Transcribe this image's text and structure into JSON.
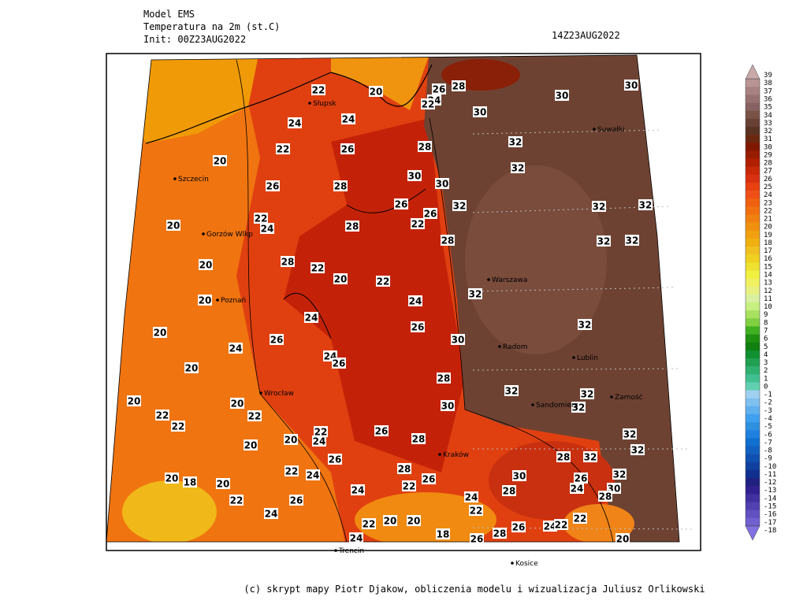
{
  "header": {
    "model": "Model EMS",
    "variable": "Temperatura na 2m (st.C)",
    "init": "Init: 00Z23AUG2022",
    "valid": "14Z23AUG2022"
  },
  "footer": "(c) skrypt mapy Piotr Djakow, obliczenia modelu i wizualizacja Juliusz Orlikowski",
  "colorbar": {
    "levels": [
      39,
      38,
      37,
      36,
      35,
      34,
      33,
      32,
      31,
      30,
      29,
      28,
      27,
      26,
      25,
      24,
      23,
      22,
      21,
      20,
      19,
      18,
      17,
      16,
      15,
      14,
      13,
      12,
      11,
      10,
      9,
      8,
      7,
      6,
      5,
      4,
      3,
      2,
      1,
      0,
      -1,
      -2,
      -3,
      -4,
      -5,
      -6,
      -7,
      -8,
      -9,
      -10,
      -11,
      -12,
      -13,
      -14,
      -15,
      -16,
      -17,
      -18
    ],
    "colors": [
      "#c8a8a8",
      "#b89494",
      "#a88282",
      "#987272",
      "#886262",
      "#785244",
      "#684034",
      "#5a3222",
      "#6a2810",
      "#801800",
      "#981c00",
      "#b02000",
      "#c82808",
      "#d83010",
      "#e84010",
      "#f05018",
      "#f06010",
      "#f07010",
      "#f08010",
      "#f09010",
      "#f0a010",
      "#f0b010",
      "#f0c020",
      "#f0d020",
      "#f0e030",
      "#f0f040",
      "#f0f060",
      "#e8f080",
      "#d8f0a0",
      "#c8f080",
      "#a8e060",
      "#80d040",
      "#40b020",
      "#209010",
      "#108010",
      "#109030",
      "#20a050",
      "#30b070",
      "#40c090",
      "#60d0b0",
      "#a0d0f0",
      "#80c0f0",
      "#60b0f0",
      "#40a0f0",
      "#3090e0",
      "#2080e0",
      "#1070d0",
      "#1060c0",
      "#1050b0",
      "#1040a0",
      "#103090",
      "#202080",
      "#302090",
      "#4030a0",
      "#5040b0",
      "#6050c0",
      "#7060d0",
      "#8070e0"
    ]
  },
  "contour_labels": [
    22,
    20,
    26,
    28,
    24,
    22,
    30,
    30,
    30,
    24,
    24,
    22,
    26,
    28,
    32,
    32,
    20,
    26,
    28,
    30,
    30,
    26,
    26,
    32,
    32,
    32,
    20,
    22,
    24,
    28,
    22,
    28,
    32,
    32,
    20,
    28,
    22,
    20,
    22,
    32,
    20,
    24,
    24,
    32,
    20,
    26,
    26,
    24,
    30,
    24,
    26,
    20,
    28,
    32,
    32,
    20,
    20,
    30,
    32,
    22,
    22,
    22,
    26,
    22,
    32,
    20,
    24,
    28,
    20,
    32,
    26,
    28,
    32,
    28,
    22,
    24,
    26,
    30,
    20,
    18,
    20,
    22,
    26,
    32,
    28,
    24,
    30,
    24,
    28,
    24,
    22,
    26,
    22,
    24,
    22,
    22,
    20,
    20,
    26,
    24,
    22,
    18,
    28,
    24,
    26,
    20
  ],
  "cities": [
    "Słupsk",
    "Suwałki",
    "Szczecin",
    "Gorzów Wlkp",
    "Poznań",
    "Wrocław",
    "Warszawa",
    "Radom",
    "Lublin",
    "Sandomierz",
    "Zamość",
    "Kraków",
    "Trencin",
    "Kosice"
  ]
}
